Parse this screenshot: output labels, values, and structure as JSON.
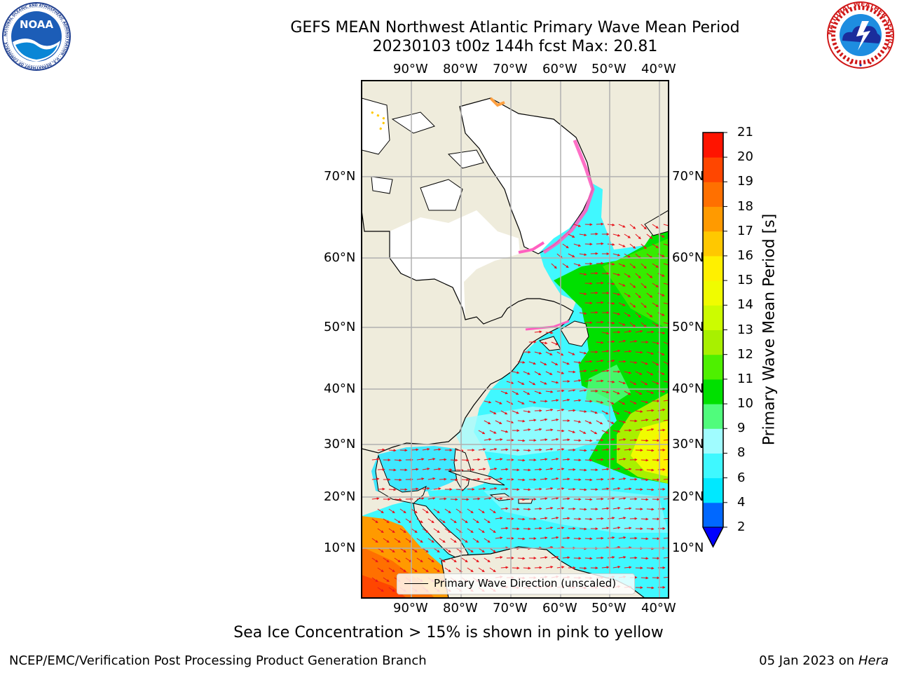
{
  "header": {
    "title_line1": "GEFS MEAN Northwest Atlantic Primary Wave Mean Period",
    "title_line2": "20230103 t00z 144h fcst   Max: 20.81"
  },
  "logos": {
    "noaa": {
      "text": "NOAA",
      "ring_text": "NATIONAL OCEANIC AND ATMOSPHERIC ADMINISTRATION · U.S. DEPARTMENT OF COMMERCE"
    },
    "nws": {
      "ring_text": "NATIONAL WEATHER SERVICE"
    }
  },
  "map": {
    "lon_labels": [
      "90°W",
      "80°W",
      "70°W",
      "60°W",
      "50°W",
      "40°W"
    ],
    "lat_labels": [
      "70°N",
      "60°N",
      "50°N",
      "40°N",
      "30°N",
      "20°N",
      "10°N"
    ],
    "legend_label": "Primary Wave Direction (unscaled)",
    "colors": {
      "land": "#efecdc",
      "ice_free_land": "#ffffff",
      "arrow": "#e8141c",
      "grid": "#b0b0b0"
    }
  },
  "colorbar": {
    "label": "Primary Wave Mean Period [s]",
    "ticks": [
      "2",
      "4",
      "6",
      "8",
      "9",
      "10",
      "11",
      "12",
      "13",
      "14",
      "15",
      "16",
      "17",
      "18",
      "19",
      "20",
      "21"
    ],
    "colors": [
      "#0068ff",
      "#00e8ff",
      "#3ff8ff",
      "#a0fcff",
      "#50fc7c",
      "#00e000",
      "#4ef000",
      "#a8f000",
      "#ccfc00",
      "#f0fc00",
      "#fff000",
      "#ffc800",
      "#ff9a00",
      "#ff7000",
      "#ff4600",
      "#ff1400"
    ],
    "extend_color": "#0000ff"
  },
  "note": "Sea Ice Concentration > 15% is shown in pink to yellow",
  "footer": {
    "left": "NCEP/EMC/Verification Post Processing Product Generation Branch",
    "date": "05 Jan 2023 on ",
    "machine": "Hera"
  }
}
